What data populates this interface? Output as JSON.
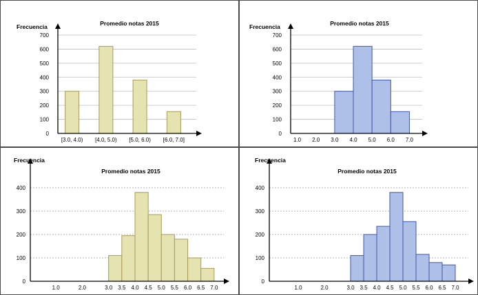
{
  "colors": {
    "yellow_fill": "#e5e3b0",
    "yellow_stroke": "#a89a5b",
    "blue_fill": "#aebfe8",
    "blue_stroke": "#3f57a8",
    "border": "#4a4a4a"
  },
  "chart_data": [
    {
      "type": "bar",
      "title": "Promedio notas 2015",
      "ylabel": "Frecuencia",
      "xlabel": "",
      "categories": [
        "[3.0, 4.0)",
        "[4.0, 5.0)",
        "[5.0, 6.0)",
        "[6.0, 7.0]"
      ],
      "values": [
        300,
        620,
        380,
        155
      ],
      "ylim": [
        0,
        700
      ],
      "yticks": [
        0,
        100,
        200,
        300,
        400,
        500,
        600,
        700
      ],
      "grid": true,
      "color": "yellow"
    },
    {
      "type": "bar",
      "title": "Promedio notas 2015",
      "ylabel": "Frecuencia",
      "xlabel": "",
      "bin_edges": [
        3.0,
        4.0,
        5.0,
        6.0,
        7.0
      ],
      "values": [
        300,
        620,
        380,
        155
      ],
      "xlim": [
        0.5,
        7.5
      ],
      "xticks": [
        "1.0",
        "2.0",
        "3.0",
        "4.0",
        "5.0",
        "6.0",
        "7.0"
      ],
      "ylim": [
        0,
        700
      ],
      "yticks": [
        0,
        100,
        200,
        300,
        400,
        500,
        600,
        700
      ],
      "grid": true,
      "color": "blue"
    },
    {
      "type": "bar",
      "title": "Promedio notas 2015",
      "ylabel": "Frecuencia",
      "xlabel": "",
      "bin_edges": [
        3.0,
        3.5,
        4.0,
        4.5,
        5.0,
        5.5,
        6.0,
        6.5,
        7.0
      ],
      "values": [
        110,
        195,
        380,
        285,
        200,
        180,
        100,
        55
      ],
      "xlim": [
        0.5,
        7.5
      ],
      "xticks": [
        "1.0",
        "2.0",
        "3.0",
        "3.5",
        "4.0",
        "4.5",
        "5.0",
        "5.5",
        "6.0",
        "6.5",
        "7.0"
      ],
      "ylim": [
        0,
        460
      ],
      "yticks": [
        0,
        100,
        200,
        300,
        400
      ],
      "grid": true,
      "color": "yellow"
    },
    {
      "type": "bar",
      "title": "Promedio notas 2015",
      "ylabel": "Frecuencia",
      "xlabel": "",
      "bin_edges": [
        3.0,
        3.5,
        4.0,
        4.5,
        5.0,
        5.5,
        6.0,
        6.5,
        7.0
      ],
      "values": [
        110,
        200,
        235,
        380,
        255,
        115,
        80,
        70
      ],
      "xlim": [
        0.5,
        7.5
      ],
      "xticks": [
        "1.0",
        "2.0",
        "3.0",
        "3.5",
        "4.0",
        "4.5",
        "5.0",
        "5.5",
        "6.0",
        "6.5",
        "7.0"
      ],
      "ylim": [
        0,
        460
      ],
      "yticks": [
        0,
        100,
        200,
        300,
        400
      ],
      "grid": true,
      "color": "blue"
    }
  ]
}
